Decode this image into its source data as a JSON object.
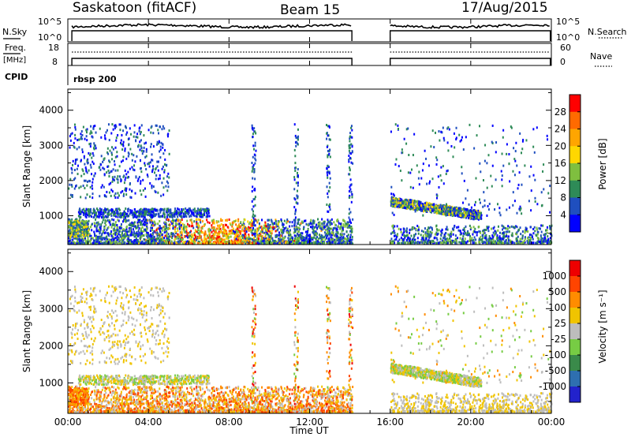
{
  "header": {
    "station": "Saskatoon (fitACF)",
    "beam": "Beam 15",
    "date": "17/Aug/2015"
  },
  "summary_panel": {
    "left_top_label": "N.Sky",
    "left_top_ticks": [
      "10^5",
      "10^0"
    ],
    "right_top_ticks": [
      "10^5",
      "10^0"
    ],
    "right_top_label": "N.Search",
    "left_mid_label_1": "Freq.",
    "left_mid_label_2": "[MHz]",
    "left_mid_ticks": [
      "18",
      "8"
    ],
    "right_mid_ticks": [
      "60",
      "0"
    ],
    "right_mid_label": "Nave",
    "cpid_label": "CPID",
    "cpid_value": "rbsp 200"
  },
  "colors": {
    "power": [
      "#0000ff",
      "#1f4fbf",
      "#2e8b57",
      "#7fbf3f",
      "#ffd700",
      "#ffa500",
      "#ff6a00",
      "#ff0000"
    ],
    "velocity": [
      "#2222cc",
      "#2e6fb0",
      "#3a8a4a",
      "#77cc44",
      "#bdbdbd",
      "#f0c400",
      "#ff8c00",
      "#ff4400",
      "#ee0000"
    ]
  },
  "chart_data": [
    {
      "type": "heatmap",
      "name": "power",
      "ylabel": "Slant Range [km]",
      "ylim": [
        180,
        4600
      ],
      "yticks": [
        "1000",
        "2000",
        "3000",
        "4000"
      ],
      "yticks_values": [
        1000,
        2000,
        3000,
        4000
      ],
      "xlim_hours": [
        0,
        24
      ],
      "colorbar_label": "Power [dB]",
      "colorbar_ticks": [
        "4",
        "8",
        "12",
        "16",
        "20",
        "24",
        "28"
      ],
      "colorbar_range": [
        0,
        30
      ],
      "data_gap_hours": [
        14.1,
        16.0
      ]
    },
    {
      "type": "heatmap",
      "name": "velocity",
      "ylabel": "Slant Range [km]",
      "ylim": [
        180,
        4600
      ],
      "yticks": [
        "1000",
        "2000",
        "3000",
        "4000"
      ],
      "yticks_values": [
        1000,
        2000,
        3000,
        4000
      ],
      "xlim_hours": [
        0,
        24
      ],
      "xlabel": "Time UT",
      "xticks": [
        "00:00",
        "04:00",
        "08:00",
        "12:00",
        "16:00",
        "20:00",
        "00:00"
      ],
      "xticks_values": [
        0,
        4,
        8,
        12,
        16,
        20,
        24
      ],
      "colorbar_label": "Velocity [m s⁻¹]",
      "colorbar_ticks": [
        "1000",
        "500",
        "100",
        "25",
        "-25",
        "-100",
        "-500",
        "-1000"
      ],
      "data_gap_hours": [
        14.1,
        16.0
      ]
    }
  ]
}
